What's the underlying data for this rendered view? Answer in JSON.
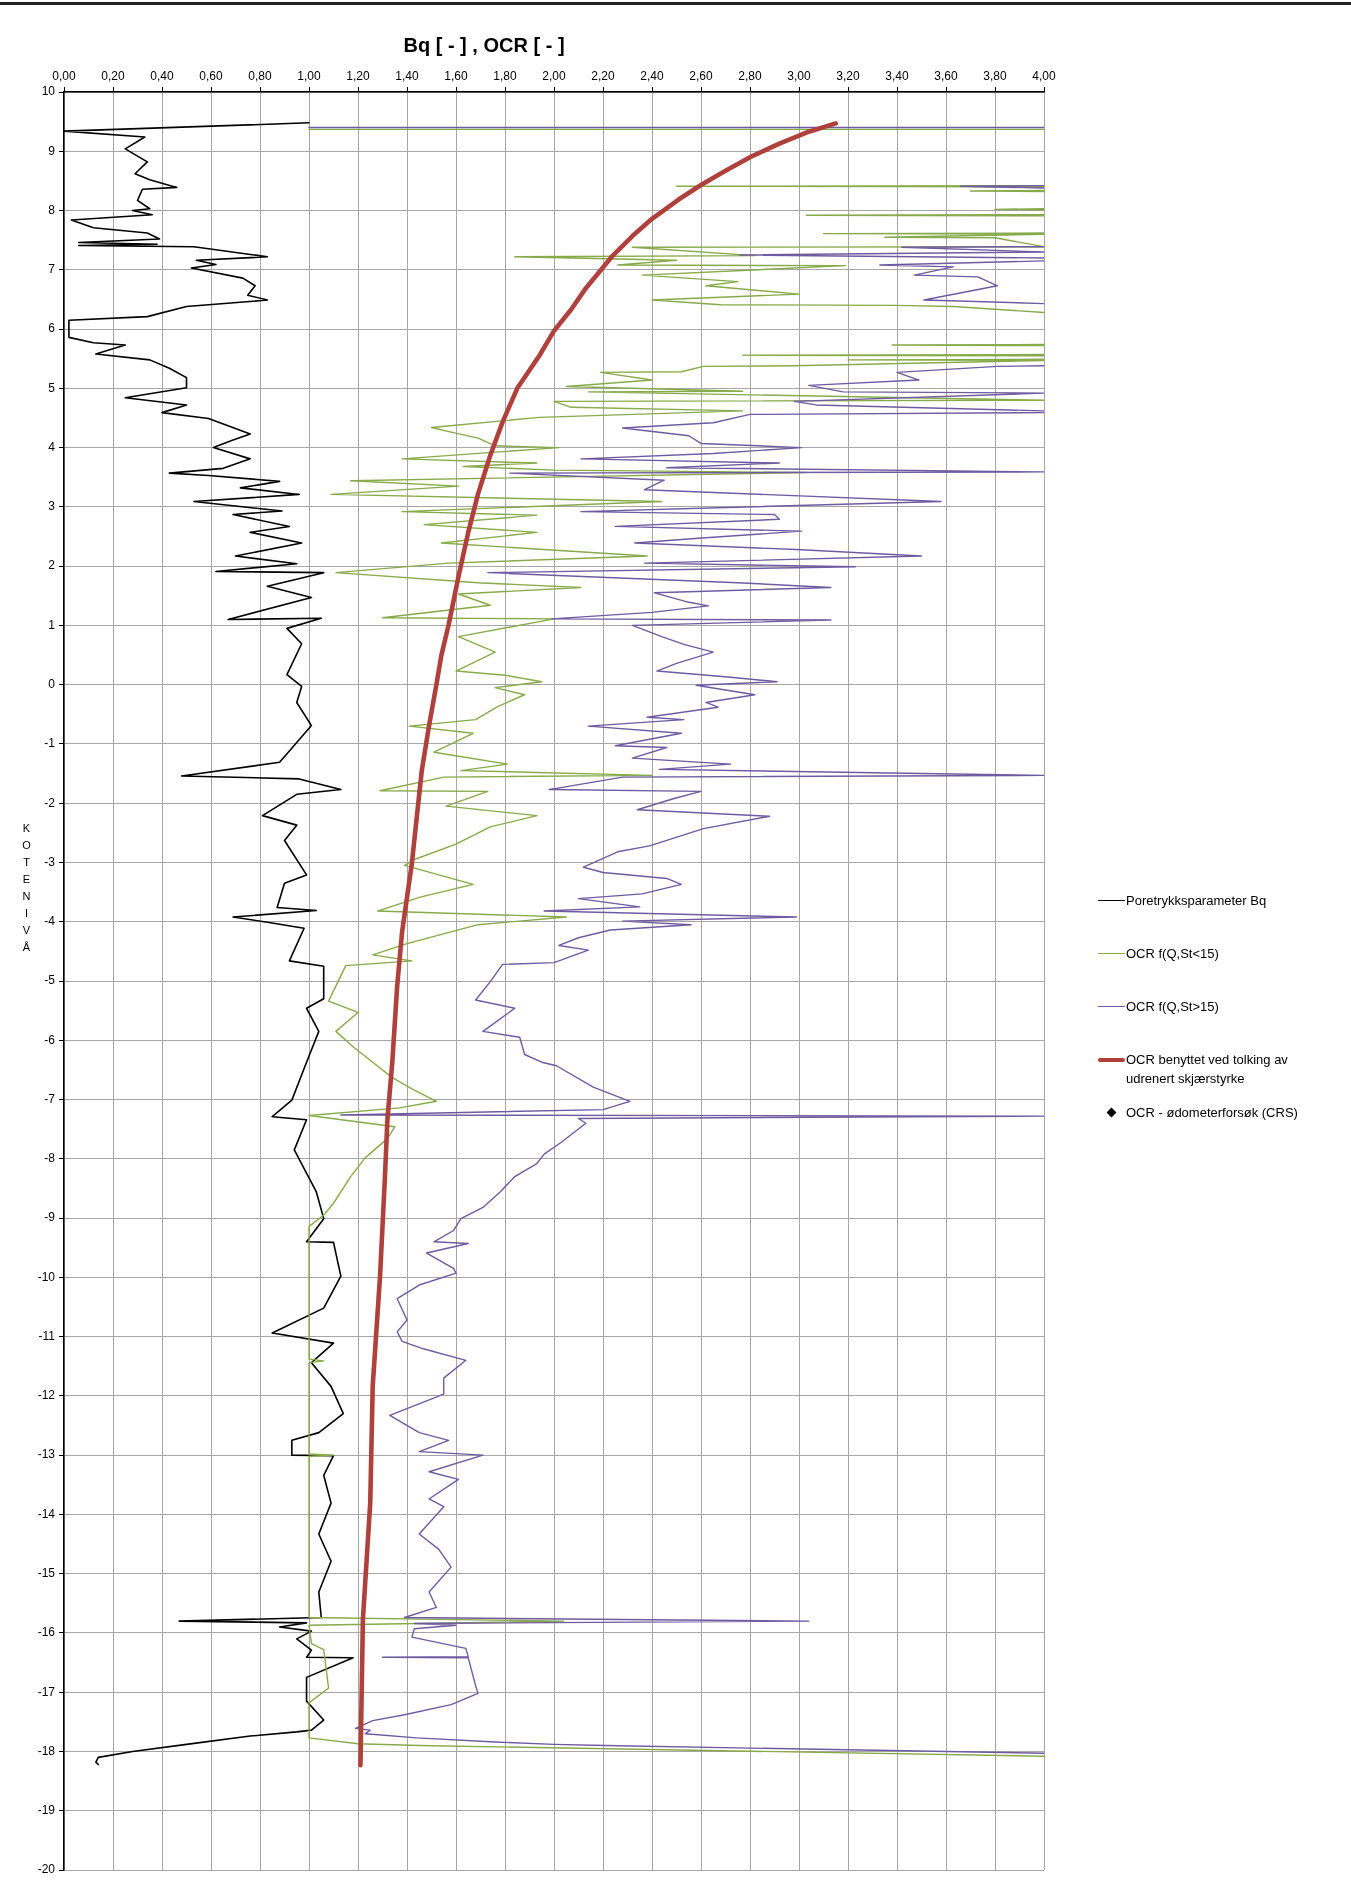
{
  "chart_data": {
    "type": "line",
    "title": "Bq [ - ] , OCR [ - ]",
    "ylabel": "KOTENIVÅ",
    "xlim": [
      0,
      4
    ],
    "xticks": [
      {
        "value": 0,
        "label": "0,00"
      },
      {
        "value": 0.2,
        "label": "0,20"
      },
      {
        "value": 0.4,
        "label": "0,40"
      },
      {
        "value": 0.6,
        "label": "0,60"
      },
      {
        "value": 0.8,
        "label": "0,80"
      },
      {
        "value": 1,
        "label": "1,00"
      },
      {
        "value": 1.2,
        "label": "1,20"
      },
      {
        "value": 1.4,
        "label": "1,40"
      },
      {
        "value": 1.6,
        "label": "1,60"
      },
      {
        "value": 1.8,
        "label": "1,80"
      },
      {
        "value": 2,
        "label": "2,00"
      },
      {
        "value": 2.2,
        "label": "2,20"
      },
      {
        "value": 2.4,
        "label": "2,40"
      },
      {
        "value": 2.6,
        "label": "2,60"
      },
      {
        "value": 2.8,
        "label": "2,80"
      },
      {
        "value": 3,
        "label": "3,00"
      },
      {
        "value": 3.2,
        "label": "3,20"
      },
      {
        "value": 3.4,
        "label": "3,40"
      },
      {
        "value": 3.6,
        "label": "3,60"
      },
      {
        "value": 3.8,
        "label": "3,80"
      },
      {
        "value": 4,
        "label": "4,00"
      }
    ],
    "ylim": [
      -20,
      10
    ],
    "yticks": [
      -20,
      -19,
      -18,
      -17,
      -16,
      -15,
      -14,
      -13,
      -12,
      -11,
      -10,
      -9,
      -8,
      -7,
      -6,
      -5,
      -4,
      -3,
      -2,
      -1,
      0,
      1,
      2,
      3,
      4,
      5,
      6,
      7,
      8,
      9,
      10
    ],
    "grid": true,
    "legend": "right",
    "series": [
      {
        "name": "Poretrykksparameter Bq",
        "color": "#000000",
        "x": [
          1.0,
          0.0,
          0.33,
          0.25,
          0.34,
          0.29,
          0.35,
          0.46,
          0.32,
          0.3,
          0.35,
          0.28,
          0.36,
          0.03,
          0.12,
          0.34,
          0.39,
          0.06,
          0.38,
          0.06,
          0.53,
          0.83,
          0.54,
          0.62,
          0.52,
          0.73,
          0.78,
          0.75,
          0.83,
          0.5,
          0.34,
          0.02,
          0.02,
          0.12,
          0.25,
          0.13,
          0.35,
          0.43,
          0.5,
          0.5,
          0.25,
          0.5,
          0.4,
          0.59,
          0.76,
          0.69,
          0.61,
          0.76,
          0.65,
          0.43,
          0.59,
          0.88,
          0.72,
          0.96,
          0.53,
          0.89,
          0.69,
          0.92,
          0.76,
          0.97,
          0.7,
          0.95,
          0.62,
          1.06,
          0.83,
          1.01,
          0.67,
          1.05,
          0.91,
          0.97,
          0.91,
          0.97,
          0.95,
          1.01,
          0.88,
          0.48,
          0.96,
          1.13,
          0.95,
          0.81,
          0.95,
          0.9,
          0.99,
          0.9,
          0.87,
          1.03,
          0.69,
          0.83,
          0.98,
          0.92,
          1.06,
          1.06,
          0.99,
          1.04,
          0.99,
          0.93,
          0.85,
          0.99,
          0.94,
          1.03,
          1.06,
          0.99,
          1.1,
          1.13,
          1.06,
          0.85,
          1.1,
          1.01,
          1.09,
          1.14,
          1.04,
          0.93,
          0.93,
          1.1,
          1.06,
          1.09,
          1.04,
          1.09,
          1.04,
          1.05,
          0.47,
          0.99,
          0.88,
          1.01,
          0.95,
          1.01,
          0.99,
          1.18,
          0.99,
          0.99,
          1.06,
          1.01,
          0.95,
          0.76,
          0.5,
          0.28,
          0.14,
          0.13,
          0.14
        ],
        "values": [
          9.48,
          9.34,
          9.24,
          9.04,
          8.82,
          8.62,
          8.52,
          8.39,
          8.36,
          8.17,
          8.03,
          8.0,
          7.93,
          7.84,
          7.71,
          7.62,
          7.52,
          7.46,
          7.43,
          7.41,
          7.39,
          7.22,
          7.16,
          7.09,
          7.03,
          6.86,
          6.73,
          6.57,
          6.49,
          6.38,
          6.21,
          6.15,
          5.86,
          5.77,
          5.73,
          5.58,
          5.48,
          5.34,
          5.18,
          5.01,
          4.84,
          4.72,
          4.59,
          4.49,
          4.23,
          4.13,
          4.0,
          3.81,
          3.65,
          3.57,
          3.53,
          3.43,
          3.32,
          3.21,
          3.09,
          2.93,
          2.87,
          2.67,
          2.57,
          2.39,
          2.17,
          2.04,
          1.91,
          1.89,
          1.66,
          1.47,
          1.1,
          1.12,
          0.95,
          0.69,
          0.17,
          -0.03,
          -0.3,
          -0.69,
          -1.31,
          -1.54,
          -1.59,
          -1.77,
          -1.85,
          -2.21,
          -2.37,
          -2.63,
          -3.21,
          -3.35,
          -3.76,
          -3.81,
          -3.92,
          -4.01,
          -4.11,
          -4.66,
          -4.75,
          -5.3,
          -5.46,
          -5.85,
          -6.37,
          -7.01,
          -7.29,
          -7.34,
          -7.85,
          -8.56,
          -9.01,
          -9.4,
          -9.41,
          -9.98,
          -10.52,
          -10.94,
          -11.11,
          -11.44,
          -11.84,
          -12.3,
          -12.62,
          -12.75,
          -13.0,
          -13.01,
          -13.34,
          -13.81,
          -14.33,
          -14.79,
          -15.31,
          -15.74,
          -15.8,
          -15.83,
          -15.9,
          -15.97,
          -16.1,
          -16.29,
          -16.41,
          -16.42,
          -16.75,
          -17.15,
          -17.47,
          -17.64,
          -17.67,
          -17.74,
          -17.88,
          -18.0,
          -18.1,
          -18.18,
          -18.22
        ]
      },
      {
        "name": "OCR f(Q,St<15)",
        "color": "#87aa4b",
        "x": [
          1.0,
          4.0,
          null,
          4.0,
          2.5,
          4.0,
          null,
          4.0,
          3.7,
          4.0,
          null,
          4.0,
          3.8,
          4.0,
          null,
          4.0,
          3.03,
          4.0,
          null,
          4.0,
          3.1,
          4.0,
          3.35,
          3.8,
          4.0,
          2.32,
          2.82,
          1.84,
          2.5,
          2.26,
          3.19,
          2.36,
          2.75,
          2.62,
          3.0,
          2.4,
          2.68,
          3.39,
          3.63,
          4.0,
          null,
          4.0,
          3.38,
          4.0,
          null,
          4.0,
          2.77,
          4.0,
          null,
          4.0,
          3.2,
          4.0,
          2.98,
          2.61,
          2.52,
          2.19,
          2.4,
          2.05,
          2.77,
          2.14,
          4.0,
          2.0,
          2.07,
          2.77,
          1.94,
          1.5,
          1.58,
          1.69,
          1.76,
          2.02,
          1.38,
          1.93,
          1.63,
          2.0,
          3.03,
          1.17,
          1.61,
          1.09,
          2.44,
          1.38,
          1.93,
          1.47,
          1.93,
          1.54,
          2.38,
          1.57,
          1.11,
          1.69,
          2.11,
          1.61,
          1.74,
          1.3,
          2.0,
          1.61,
          1.76,
          1.6,
          1.8,
          1.95,
          1.76,
          1.88,
          1.77,
          1.68,
          1.41,
          1.67,
          1.51,
          1.81,
          1.62,
          2.4,
          1.55,
          1.29,
          1.73,
          1.56,
          1.93,
          1.74,
          1.6,
          1.43,
          1.39,
          1.67,
          1.45,
          1.28,
          2.05,
          1.69,
          1.4,
          1.26,
          1.42,
          1.15,
          1.08,
          1.2,
          1.11,
          1.18,
          1.26,
          1.34,
          1.42,
          1.52,
          1.37,
          1.0,
          1.35,
          1.32,
          1.23,
          1.17,
          1.1,
          1.06,
          1.0,
          1.0,
          1.06,
          1.0,
          1.0,
          1.1,
          1.0,
          1.0,
          2.04,
          1.0,
          1.01,
          1.06,
          1.08,
          1.0,
          1.0,
          1.2,
          1.45,
          4.0
        ],
        "values": [
          9.37,
          9.37,
          null,
          8.42,
          8.41,
          8.4,
          null,
          8.34,
          8.33,
          8.32,
          null,
          8.03,
          8.02,
          8.01,
          null,
          7.93,
          7.92,
          7.91,
          null,
          7.62,
          7.61,
          7.6,
          7.55,
          7.54,
          7.39,
          7.38,
          7.24,
          7.22,
          7.16,
          7.08,
          7.07,
          6.91,
          6.8,
          6.73,
          6.59,
          6.49,
          6.41,
          6.4,
          6.38,
          6.28,
          null,
          5.74,
          5.73,
          5.72,
          null,
          5.57,
          5.56,
          5.55,
          null,
          5.49,
          5.48,
          5.47,
          5.38,
          5.37,
          5.28,
          5.27,
          5.14,
          5.03,
          4.95,
          4.94,
          4.8,
          4.78,
          4.68,
          4.62,
          4.51,
          4.34,
          4.26,
          4.16,
          4.03,
          4.0,
          3.81,
          3.74,
          3.68,
          3.62,
          3.58,
          3.44,
          3.35,
          3.21,
          3.09,
          2.92,
          2.86,
          2.7,
          2.57,
          2.39,
          2.17,
          2.05,
          1.89,
          1.72,
          1.64,
          1.53,
          1.34,
          1.13,
          1.11,
          0.81,
          0.55,
          0.23,
          0.16,
          0.05,
          -0.05,
          -0.17,
          -0.37,
          -0.59,
          -0.7,
          -0.82,
          -1.14,
          -1.34,
          -1.45,
          -1.53,
          -1.56,
          -1.79,
          -1.8,
          -2.05,
          -2.21,
          -2.4,
          -2.69,
          -2.95,
          -3.05,
          -3.37,
          -3.59,
          -3.82,
          -3.92,
          -4.05,
          -4.37,
          -4.56,
          -4.66,
          -4.74,
          -5.34,
          -5.53,
          -5.85,
          -6.11,
          -6.37,
          -6.63,
          -6.82,
          -7.03,
          -7.14,
          -7.27,
          -7.46,
          -7.66,
          -7.98,
          -8.3,
          -8.75,
          -8.95,
          -9.14,
          -11.38,
          -11.41,
          -11.44,
          -12.98,
          -13.0,
          -13.02,
          -15.74,
          -15.8,
          -15.87,
          -16.18,
          -16.28,
          -16.93,
          -17.18,
          -17.77,
          -17.87,
          -17.9,
          -18.08
        ]
      },
      {
        "name": "OCR f(Q,St>15)",
        "color": "#705aa0",
        "x": [
          1.0,
          4.0,
          null,
          4.0,
          3.66,
          4.0,
          null,
          4.0,
          3.42,
          4.0,
          2.76,
          4.0,
          null,
          4.0,
          3.33,
          3.63,
          3.47,
          3.73,
          3.81,
          3.51,
          4.0,
          null,
          4.0,
          3.81,
          3.4,
          3.49,
          3.04,
          3.18,
          4.0,
          2.98,
          3.07,
          4.0,
          null,
          4.0,
          2.8,
          2.65,
          2.28,
          2.55,
          2.6,
          3.01,
          2.65,
          2.11,
          2.92,
          2.46,
          4.0,
          1.82,
          2.45,
          2.37,
          3.58,
          2.11,
          2.9,
          2.92,
          2.25,
          3.01,
          2.59,
          2.33,
          2.99,
          3.5,
          2.37,
          3.23,
          1.73,
          2.75,
          3.13,
          2.41,
          2.54,
          2.63,
          2.4,
          1.99,
          3.13,
          2.32,
          2.44,
          2.53,
          2.65,
          2.5,
          2.42,
          2.71,
          2.91,
          2.58,
          2.82,
          2.62,
          2.67,
          2.38,
          2.53,
          2.14,
          2.52,
          2.25,
          2.46,
          2.32,
          2.72,
          2.43,
          4.0,
          2.28,
          1.98,
          2.6,
          2.49,
          2.34,
          2.88,
          2.61,
          2.39,
          2.26,
          2.12,
          2.2,
          2.46,
          2.52,
          2.36,
          2.1,
          2.35,
          1.96,
          2.99,
          2.28,
          2.56,
          2.23,
          2.1,
          2.02,
          2.14,
          2.0,
          1.79,
          1.74,
          1.68,
          1.84,
          1.71,
          1.86,
          1.88,
          1.95,
          2.01,
          2.16,
          2.31,
          2.2,
          1.13,
          4.0,
          2.1,
          2.13,
          2.03,
          1.96,
          1.93,
          1.84,
          1.78,
          1.71,
          1.62,
          1.59,
          1.51,
          1.65,
          1.48,
          1.59,
          1.6,
          1.45,
          1.36,
          1.4,
          1.36,
          1.38,
          1.47,
          1.64,
          1.55,
          1.55,
          1.33,
          1.45,
          1.57,
          1.45,
          1.71,
          1.49,
          1.61,
          1.49,
          1.55,
          1.45,
          1.53,
          1.58,
          1.49,
          1.52,
          1.39,
          3.04,
          1.43,
          1.6,
          1.43,
          1.42,
          1.64,
          1.65,
          1.3,
          1.65,
          1.68,
          1.69,
          1.58,
          1.39,
          1.26,
          1.19,
          1.25,
          1.23,
          1.44,
          1.76,
          2.0,
          2.21,
          4.0
        ],
        "values": [
          9.4,
          9.4,
          null,
          8.42,
          8.41,
          8.38,
          null,
          7.39,
          7.38,
          7.3,
          7.25,
          7.2,
          null,
          7.15,
          7.08,
          7.05,
          6.91,
          6.88,
          6.73,
          6.49,
          6.43,
          null,
          5.38,
          5.37,
          5.27,
          5.14,
          5.05,
          4.94,
          4.92,
          4.78,
          4.72,
          4.62,
          null,
          4.59,
          4.56,
          4.42,
          4.33,
          4.2,
          4.07,
          4.0,
          3.9,
          3.81,
          3.74,
          3.66,
          3.59,
          3.57,
          3.45,
          3.29,
          3.09,
          2.92,
          2.87,
          2.79,
          2.67,
          2.59,
          2.47,
          2.39,
          2.28,
          2.17,
          2.05,
          1.99,
          1.89,
          1.72,
          1.64,
          1.55,
          1.4,
          1.33,
          1.22,
          1.11,
          1.09,
          1.0,
          0.81,
          0.68,
          0.55,
          0.36,
          0.23,
          0.13,
          0.05,
          -0.01,
          -0.17,
          -0.3,
          -0.38,
          -0.55,
          -0.59,
          -0.7,
          -0.82,
          -1.03,
          -1.06,
          -1.24,
          -1.34,
          -1.43,
          -1.53,
          -1.56,
          -1.77,
          -1.8,
          -1.92,
          -2.11,
          -2.22,
          -2.43,
          -2.72,
          -2.82,
          -3.08,
          -3.17,
          -3.27,
          -3.37,
          -3.53,
          -3.61,
          -3.75,
          -3.82,
          -3.92,
          -3.99,
          -4.05,
          -4.14,
          -4.27,
          -4.4,
          -4.48,
          -4.69,
          -4.72,
          -5.01,
          -5.32,
          -5.46,
          -5.85,
          -5.95,
          -6.24,
          -6.37,
          -6.43,
          -6.79,
          -7.03,
          -7.17,
          -7.26,
          -7.28,
          -7.32,
          -7.4,
          -7.72,
          -7.92,
          -8.08,
          -8.3,
          -8.56,
          -8.82,
          -9.01,
          -9.21,
          -9.4,
          -9.43,
          -9.59,
          -9.85,
          -9.93,
          -10.13,
          -10.36,
          -10.72,
          -10.92,
          -11.08,
          -11.21,
          -11.4,
          -11.7,
          -11.97,
          -12.33,
          -12.62,
          -12.75,
          -12.94,
          -13.0,
          -13.28,
          -13.41,
          -13.74,
          -13.87,
          -14.33,
          -14.59,
          -14.89,
          -15.31,
          -15.57,
          -15.74,
          -15.8,
          -15.84,
          -15.87,
          -15.93,
          -16.07,
          -16.26,
          -16.4,
          -16.41,
          -16.42,
          -16.89,
          -17.02,
          -17.21,
          -17.38,
          -17.48,
          -17.61,
          -17.64,
          -17.7,
          -17.77,
          -17.84,
          -17.88,
          -17.9,
          -18.03
        ]
      },
      {
        "name": "OCR benyttet ved tolking av udrenert skjærstyrke",
        "color": "#af413c",
        "x": [
          3.15,
          3.04,
          2.92,
          2.8,
          2.7,
          2.6,
          2.51,
          2.4,
          2.32,
          2.24,
          2.13,
          2.07,
          2.0,
          1.94,
          1.85,
          1.79,
          1.74,
          1.69,
          1.65,
          1.61,
          1.57,
          1.54,
          1.52,
          1.49,
          1.46,
          1.42,
          1.38,
          1.36,
          1.34,
          1.32,
          1.31,
          1.29,
          1.26,
          1.25,
          1.22,
          1.21
        ],
        "values": [
          9.47,
          9.33,
          9.13,
          8.9,
          8.67,
          8.43,
          8.19,
          7.86,
          7.57,
          7.24,
          6.69,
          6.33,
          5.97,
          5.55,
          5.0,
          4.43,
          3.87,
          3.22,
          2.57,
          1.82,
          1.01,
          0.49,
          0.0,
          -0.69,
          -1.46,
          -3.01,
          -4.17,
          -5.08,
          -6.37,
          -7.34,
          -8.3,
          -9.98,
          -11.84,
          -13.8,
          -15.77,
          -18.23
        ]
      },
      {
        "name": "OCR - ødometerforsøk (CRS)",
        "type": "scatter",
        "marker": "diamond",
        "color": "#000000"
      }
    ]
  }
}
